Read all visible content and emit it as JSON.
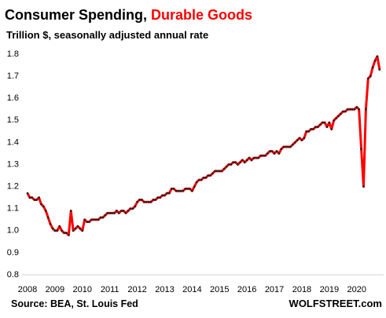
{
  "chart_data": {
    "type": "line",
    "title": [
      "Consumer Spending,",
      "Durable Goods"
    ],
    "subtitle": "Trillion $, seasonally adjusted annual rate",
    "source": "Source: BEA, St. Louis Fed",
    "watermark": "WOLFSTREET.com",
    "color": "#ff0000",
    "marker_color": "#222222",
    "ylim": [
      0.8,
      1.8
    ],
    "yticks": [
      0.8,
      0.9,
      {
        "value": 1,
        "label": "1.0"
      },
      1.1,
      1.2,
      1.3,
      1.4,
      1.5,
      1.6,
      1.7,
      1.8
    ],
    "categories": [
      "2008",
      null,
      null,
      null,
      null,
      null,
      null,
      null,
      null,
      null,
      null,
      null,
      "2009",
      null,
      null,
      null,
      null,
      null,
      null,
      null,
      null,
      null,
      null,
      null,
      "2010",
      null,
      null,
      null,
      null,
      null,
      null,
      null,
      null,
      null,
      null,
      null,
      "2011",
      null,
      null,
      null,
      null,
      null,
      null,
      null,
      null,
      null,
      null,
      null,
      "2012",
      null,
      null,
      null,
      null,
      null,
      null,
      null,
      null,
      null,
      null,
      null,
      "2013",
      null,
      null,
      null,
      null,
      null,
      null,
      null,
      null,
      null,
      null,
      null,
      "2014",
      null,
      null,
      null,
      null,
      null,
      null,
      null,
      null,
      null,
      null,
      null,
      "2015",
      null,
      null,
      null,
      null,
      null,
      null,
      null,
      null,
      null,
      null,
      null,
      "2016",
      null,
      null,
      null,
      null,
      null,
      null,
      null,
      null,
      null,
      null,
      null,
      "2017",
      null,
      null,
      null,
      null,
      null,
      null,
      null,
      null,
      null,
      null,
      null,
      "2018",
      null,
      null,
      null,
      null,
      null,
      null,
      null,
      null,
      null,
      null,
      null,
      "2019",
      null,
      null,
      null,
      null,
      null,
      null,
      null,
      null,
      null,
      null,
      null,
      "2020",
      null,
      null,
      null,
      null,
      null,
      null,
      null,
      null,
      null,
      null
    ],
    "values": [
      1.17,
      1.15,
      1.15,
      1.14,
      1.14,
      1.15,
      1.12,
      1.11,
      1.09,
      1.06,
      1.03,
      1.01,
      1.0,
      1.0,
      1.02,
      1.0,
      0.99,
      0.99,
      0.98,
      1.09,
      1.0,
      1.01,
      1.02,
      1.01,
      1.0,
      1.05,
      1.04,
      1.04,
      1.05,
      1.05,
      1.05,
      1.05,
      1.06,
      1.06,
      1.07,
      1.08,
      1.08,
      1.08,
      1.08,
      1.09,
      1.08,
      1.09,
      1.09,
      1.08,
      1.09,
      1.1,
      1.1,
      1.11,
      1.13,
      1.14,
      1.14,
      1.13,
      1.13,
      1.13,
      1.13,
      1.14,
      1.14,
      1.15,
      1.15,
      1.16,
      1.16,
      1.17,
      1.17,
      1.19,
      1.19,
      1.18,
      1.18,
      1.18,
      1.18,
      1.19,
      1.19,
      1.19,
      1.18,
      1.2,
      1.22,
      1.23,
      1.23,
      1.24,
      1.24,
      1.25,
      1.25,
      1.26,
      1.27,
      1.27,
      1.27,
      1.27,
      1.28,
      1.29,
      1.3,
      1.3,
      1.31,
      1.31,
      1.3,
      1.31,
      1.32,
      1.31,
      1.32,
      1.33,
      1.32,
      1.33,
      1.33,
      1.33,
      1.34,
      1.34,
      1.34,
      1.35,
      1.36,
      1.36,
      1.35,
      1.36,
      1.35,
      1.37,
      1.38,
      1.38,
      1.38,
      1.38,
      1.39,
      1.4,
      1.41,
      1.42,
      1.41,
      1.42,
      1.45,
      1.45,
      1.46,
      1.46,
      1.47,
      1.47,
      1.48,
      1.49,
      1.49,
      1.47,
      1.49,
      1.46,
      1.5,
      1.51,
      1.52,
      1.53,
      1.54,
      1.54,
      1.55,
      1.55,
      1.55,
      1.55,
      1.56,
      1.55,
      1.37,
      1.2,
      1.55,
      1.69,
      1.7,
      1.74,
      1.77,
      1.79,
      1.73
    ]
  }
}
